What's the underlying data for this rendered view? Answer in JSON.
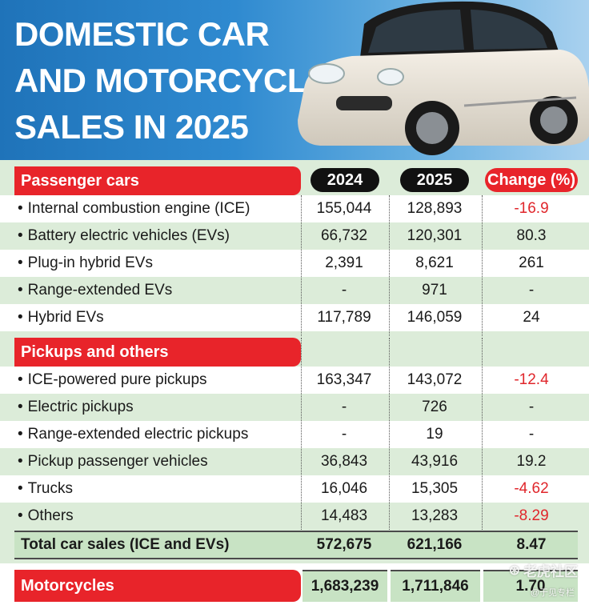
{
  "title": {
    "line1": "DOMESTIC CAR",
    "line2": "AND MOTORCYCLE",
    "line3": "SALES IN 2025"
  },
  "columns": {
    "y2024": "2024",
    "y2025": "2025",
    "change": "Change (%)"
  },
  "bullet": "•",
  "sections": {
    "passenger": {
      "label": "Passenger cars",
      "rows": [
        {
          "label": "Internal combustion engine (ICE)",
          "v2024": "155,044",
          "v2025": "128,893",
          "change": "-16.9"
        },
        {
          "label": "Battery electric vehicles (EVs)",
          "v2024": "66,732",
          "v2025": "120,301",
          "change": "80.3"
        },
        {
          "label": "Plug-in hybrid EVs",
          "v2024": "2,391",
          "v2025": "8,621",
          "change": "261"
        },
        {
          "label": "Range-extended EVs",
          "v2024": "-",
          "v2025": "971",
          "change": "-"
        },
        {
          "label": "Hybrid EVs",
          "v2024": "117,789",
          "v2025": "146,059",
          "change": "24"
        }
      ]
    },
    "pickups": {
      "label": "Pickups and others",
      "rows": [
        {
          "label": "ICE-powered pure pickups",
          "v2024": "163,347",
          "v2025": "143,072",
          "change": "-12.4"
        },
        {
          "label": "Electric pickups",
          "v2024": "-",
          "v2025": "726",
          "change": "-"
        },
        {
          "label": "Range-extended electric pickups",
          "v2024": "-",
          "v2025": "19",
          "change": "-"
        },
        {
          "label": "Pickup passenger vehicles",
          "v2024": "36,843",
          "v2025": "43,916",
          "change": "19.2"
        },
        {
          "label": "Trucks",
          "v2024": "16,046",
          "v2025": "15,305",
          "change": "-4.62"
        },
        {
          "label": "Others",
          "v2024": "14,483",
          "v2025": "13,283",
          "change": "-8.29"
        }
      ]
    }
  },
  "total": {
    "label": "Total car sales (ICE and EVs)",
    "v2024": "572,675",
    "v2025": "621,166",
    "change": "8.47"
  },
  "motorcycles": {
    "label": "Motorcycles",
    "v2024": "1,683,239",
    "v2025": "1,711,846",
    "change": "1.70"
  },
  "watermark": {
    "main": "老虎社区",
    "sub": "@于见专栏"
  },
  "colors": {
    "red": "#e8242a",
    "green": "#dcecd9",
    "total_green": "#c8e3c4",
    "header_blue": "#1f73b9"
  }
}
